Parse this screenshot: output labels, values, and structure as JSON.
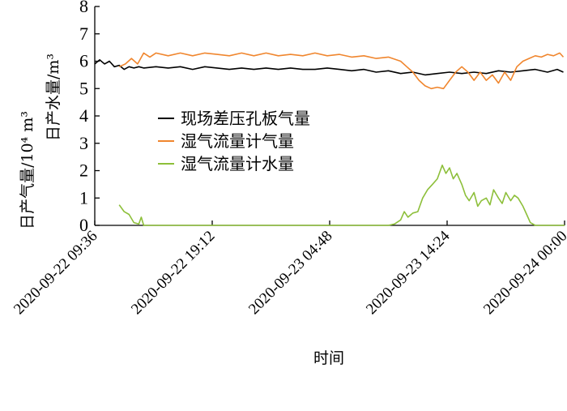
{
  "chart_data": {
    "type": "line",
    "xlabel": "时间",
    "ylabel_upper": "日产水量/m³",
    "ylabel_lower": "日产气量/10⁴ m³",
    "ylim": [
      0,
      8
    ],
    "yticks": [
      "0",
      "1",
      "2",
      "3",
      "4",
      "5",
      "6",
      "7",
      "8"
    ],
    "xlim_hours": [
      0,
      38.4
    ],
    "xticks": [
      {
        "label": "2020-09-22 09:36",
        "hour": 0
      },
      {
        "label": "2020-09-22 19:12",
        "hour": 9.6
      },
      {
        "label": "2020-09-23 04:48",
        "hour": 19.2
      },
      {
        "label": "2020-09-23 14:24",
        "hour": 28.8
      },
      {
        "label": "2020-09-24 00:00",
        "hour": 38.4
      }
    ],
    "legend_position": "center-left",
    "series": [
      {
        "name": "现场差压孔板气量",
        "color": "#000000",
        "points": [
          [
            0,
            5.9
          ],
          [
            0.4,
            6.05
          ],
          [
            0.8,
            5.9
          ],
          [
            1.2,
            6.0
          ],
          [
            1.6,
            5.8
          ],
          [
            2.0,
            5.85
          ],
          [
            2.4,
            5.7
          ],
          [
            2.8,
            5.8
          ],
          [
            3.2,
            5.75
          ],
          [
            3.6,
            5.8
          ],
          [
            4,
            5.75
          ],
          [
            5,
            5.8
          ],
          [
            6,
            5.75
          ],
          [
            7,
            5.8
          ],
          [
            8,
            5.7
          ],
          [
            9,
            5.8
          ],
          [
            10,
            5.75
          ],
          [
            11,
            5.7
          ],
          [
            12,
            5.75
          ],
          [
            13,
            5.7
          ],
          [
            14,
            5.75
          ],
          [
            15,
            5.7
          ],
          [
            16,
            5.75
          ],
          [
            17,
            5.7
          ],
          [
            18,
            5.7
          ],
          [
            19,
            5.75
          ],
          [
            20,
            5.7
          ],
          [
            21,
            5.65
          ],
          [
            22,
            5.7
          ],
          [
            23,
            5.6
          ],
          [
            24,
            5.65
          ],
          [
            25,
            5.55
          ],
          [
            26,
            5.6
          ],
          [
            27,
            5.5
          ],
          [
            28,
            5.55
          ],
          [
            29,
            5.6
          ],
          [
            30,
            5.55
          ],
          [
            31,
            5.6
          ],
          [
            32,
            5.55
          ],
          [
            33,
            5.65
          ],
          [
            34,
            5.6
          ],
          [
            35,
            5.65
          ],
          [
            36,
            5.7
          ],
          [
            37,
            5.6
          ],
          [
            37.8,
            5.7
          ],
          [
            38.3,
            5.6
          ]
        ]
      },
      {
        "name": "湿气流量计气量",
        "color": "#f0862e",
        "points": [
          [
            2.0,
            5.8
          ],
          [
            2.5,
            5.9
          ],
          [
            3.0,
            6.1
          ],
          [
            3.5,
            5.9
          ],
          [
            4.0,
            6.3
          ],
          [
            4.5,
            6.15
          ],
          [
            5,
            6.3
          ],
          [
            6,
            6.2
          ],
          [
            7,
            6.3
          ],
          [
            8,
            6.2
          ],
          [
            9,
            6.3
          ],
          [
            10,
            6.25
          ],
          [
            11,
            6.2
          ],
          [
            12,
            6.3
          ],
          [
            13,
            6.2
          ],
          [
            14,
            6.3
          ],
          [
            15,
            6.2
          ],
          [
            16,
            6.25
          ],
          [
            17,
            6.2
          ],
          [
            18,
            6.3
          ],
          [
            19,
            6.2
          ],
          [
            20,
            6.25
          ],
          [
            21,
            6.15
          ],
          [
            22,
            6.2
          ],
          [
            23,
            6.1
          ],
          [
            24,
            6.15
          ],
          [
            25,
            6.0
          ],
          [
            25.5,
            5.8
          ],
          [
            26,
            5.6
          ],
          [
            26.5,
            5.3
          ],
          [
            27,
            5.1
          ],
          [
            27.5,
            5.0
          ],
          [
            28,
            5.05
          ],
          [
            28.5,
            5.0
          ],
          [
            29,
            5.3
          ],
          [
            29.5,
            5.6
          ],
          [
            30,
            5.8
          ],
          [
            30.5,
            5.6
          ],
          [
            31,
            5.3
          ],
          [
            31.5,
            5.6
          ],
          [
            32,
            5.3
          ],
          [
            32.5,
            5.5
          ],
          [
            33,
            5.2
          ],
          [
            33.5,
            5.6
          ],
          [
            34,
            5.3
          ],
          [
            34.5,
            5.8
          ],
          [
            35,
            6.0
          ],
          [
            35.5,
            6.1
          ],
          [
            36,
            6.2
          ],
          [
            36.5,
            6.15
          ],
          [
            37,
            6.25
          ],
          [
            37.5,
            6.2
          ],
          [
            38,
            6.3
          ],
          [
            38.3,
            6.15
          ]
        ]
      },
      {
        "name": "湿气流量计水量",
        "color": "#8dbf3a",
        "points": [
          [
            2.0,
            0.75
          ],
          [
            2.4,
            0.5
          ],
          [
            2.8,
            0.4
          ],
          [
            3.2,
            0.1
          ],
          [
            3.6,
            0.05
          ],
          [
            3.8,
            0.3
          ],
          [
            4.0,
            0.0
          ],
          [
            6,
            0.0
          ],
          [
            10,
            0.0
          ],
          [
            15,
            0.0
          ],
          [
            20,
            0.0
          ],
          [
            24,
            0.0
          ],
          [
            24.5,
            0.05
          ],
          [
            25,
            0.2
          ],
          [
            25.3,
            0.5
          ],
          [
            25.6,
            0.3
          ],
          [
            26,
            0.45
          ],
          [
            26.4,
            0.5
          ],
          [
            26.8,
            1.0
          ],
          [
            27.2,
            1.3
          ],
          [
            27.6,
            1.5
          ],
          [
            28.0,
            1.7
          ],
          [
            28.4,
            2.2
          ],
          [
            28.7,
            1.9
          ],
          [
            29.0,
            2.1
          ],
          [
            29.3,
            1.7
          ],
          [
            29.6,
            1.9
          ],
          [
            30.0,
            1.5
          ],
          [
            30.3,
            1.1
          ],
          [
            30.6,
            0.9
          ],
          [
            31.0,
            1.2
          ],
          [
            31.3,
            0.7
          ],
          [
            31.6,
            0.9
          ],
          [
            32.0,
            1.0
          ],
          [
            32.3,
            0.75
          ],
          [
            32.6,
            1.3
          ],
          [
            33.0,
            1.0
          ],
          [
            33.3,
            0.8
          ],
          [
            33.6,
            1.2
          ],
          [
            34.0,
            0.9
          ],
          [
            34.3,
            1.1
          ],
          [
            34.6,
            1.0
          ],
          [
            35.0,
            0.7
          ],
          [
            35.3,
            0.4
          ],
          [
            35.6,
            0.1
          ],
          [
            36.0,
            0.0
          ],
          [
            38.4,
            0.0
          ]
        ]
      }
    ]
  }
}
